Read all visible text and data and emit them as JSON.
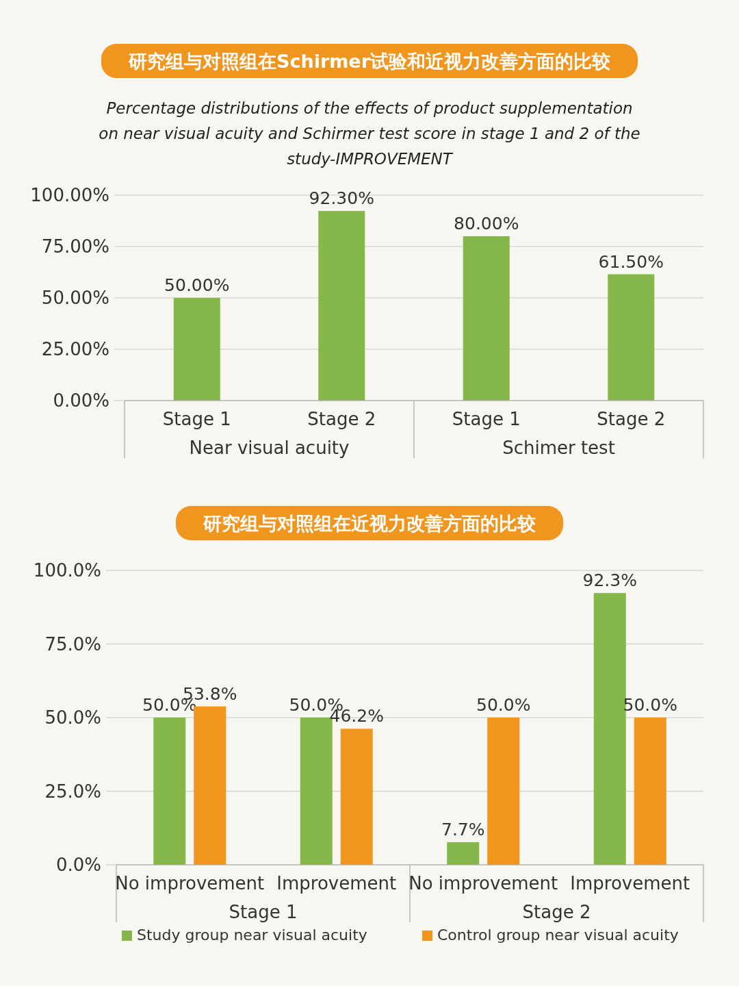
{
  "chart_data": [
    {
      "type": "bar",
      "title": "研究组与对照组在Schirmer试验和近视力改善方面的比较",
      "subtitle": "Percentage distributions of the effects of product supplementation on near visual acuity and Schirmer test score in stage 1 and 2 of the study-IMPROVEMENT",
      "categories": [
        "Stage 1",
        "Stage 2",
        "Stage 1",
        "Stage 2"
      ],
      "series": [
        {
          "color": "#86b74a",
          "values": [
            50,
            92.3,
            80,
            61.5
          ],
          "value_labels": [
            "50.00%",
            "92.30%",
            "80.00%",
            "61.50%"
          ]
        }
      ],
      "annotations": [
        "Near visual acuity",
        "Schimer test"
      ],
      "ylim": [
        0,
        100
      ],
      "yticks": [
        {
          "value": 0,
          "label": "0.00%"
        },
        {
          "value": 25,
          "label": "25.00%"
        },
        {
          "value": 50,
          "label": "50.00%"
        },
        {
          "value": 75,
          "label": "75.00%"
        },
        {
          "value": 100,
          "label": "100.00%"
        }
      ],
      "grid": "y",
      "legend": false
    },
    {
      "type": "bar",
      "title": "研究组与对照组在近视力改善方面的比较",
      "categories": [
        "No improvement",
        "Improvement",
        "No improvement",
        "Improvement"
      ],
      "series": [
        {
          "name": "Study group near visual acuity",
          "color": "#86b74a",
          "values": [
            50,
            50,
            7.7,
            92.3
          ],
          "value_labels": [
            "50.0%",
            "50.0%",
            "7.7%",
            "92.3%"
          ]
        },
        {
          "name": "Control group near visual acuity",
          "color": "#f0951e",
          "values": [
            53.8,
            46.2,
            50,
            50
          ],
          "value_labels": [
            "53.8%",
            "46.2%",
            "50.0%",
            "50.0%"
          ]
        }
      ],
      "annotations": [
        "Stage 1",
        "Stage 2"
      ],
      "ylim": [
        0,
        100
      ],
      "yticks": [
        {
          "value": 0,
          "label": "0.0%"
        },
        {
          "value": 25,
          "label": "25.0%"
        },
        {
          "value": 50,
          "label": "50.0%"
        },
        {
          "value": 75,
          "label": "75.0%"
        },
        {
          "value": 100,
          "label": "100.0%"
        }
      ],
      "grid": "y",
      "legend": "bottom"
    }
  ]
}
